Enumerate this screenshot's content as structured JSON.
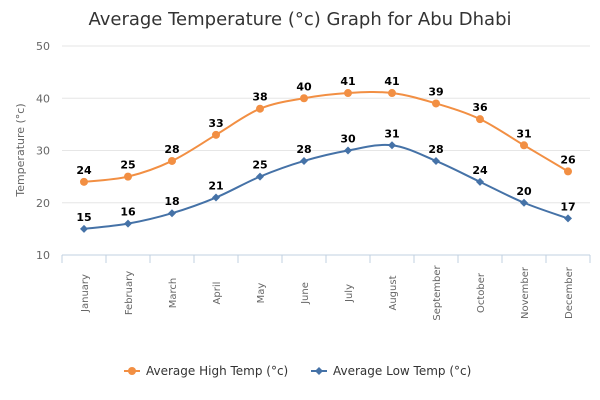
{
  "chart_data": {
    "type": "line",
    "title": "Average Temperature (°c) Graph for Abu Dhabi",
    "ylabel": "Temperature (°c)",
    "xlabel": "",
    "ylim": [
      10,
      50
    ],
    "yticks": [
      10,
      20,
      30,
      40,
      50
    ],
    "grid": true,
    "legend_position": "bottom",
    "categories": [
      "January",
      "February",
      "March",
      "April",
      "May",
      "June",
      "July",
      "August",
      "September",
      "October",
      "November",
      "December"
    ],
    "series": [
      {
        "name": "Average High Temp (°c)",
        "values": [
          24,
          25,
          28,
          33,
          38,
          40,
          41,
          41,
          39,
          36,
          31,
          26
        ],
        "color": "#f28f43",
        "marker": "circle"
      },
      {
        "name": "Average Low Temp (°c)",
        "values": [
          15,
          16,
          18,
          21,
          25,
          28,
          30,
          31,
          28,
          24,
          20,
          17
        ],
        "color": "#4572a7",
        "marker": "diamond"
      }
    ]
  }
}
